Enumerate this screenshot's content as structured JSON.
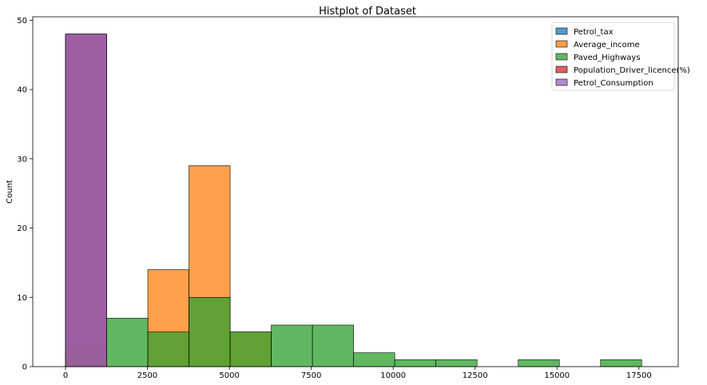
{
  "chart_data": {
    "type": "bar",
    "title": "Histplot of Dataset",
    "xlabel": "",
    "ylabel": "Count",
    "xlim": [
      -1000,
      18700
    ],
    "ylim": [
      0,
      50.5
    ],
    "x_ticks": [
      0,
      2500,
      5000,
      7500,
      10000,
      12500,
      15000,
      17500
    ],
    "x_tick_labels": [
      "0",
      "2500",
      "5000",
      "7500",
      "10000",
      "12500",
      "15000",
      "17500"
    ],
    "y_ticks": [
      0,
      10,
      20,
      30,
      40,
      50
    ],
    "y_tick_labels": [
      "0",
      "10",
      "20",
      "30",
      "40",
      "50"
    ],
    "bin_edges": [
      0,
      1256,
      2512,
      3768,
      5024,
      6280,
      7536,
      8792,
      10048,
      11304,
      12560,
      13816,
      15072,
      16328,
      17584
    ],
    "legend_position": "top-right",
    "series": [
      {
        "name": "Petrol_tax",
        "color": "#1f77b4",
        "values": [
          48,
          0,
          0,
          0,
          0,
          0,
          0,
          0,
          0,
          0,
          0,
          0,
          0,
          0
        ]
      },
      {
        "name": "Average_income",
        "color": "#ff7f0e",
        "values": [
          0,
          0,
          14,
          29,
          5,
          0,
          0,
          0,
          0,
          0,
          0,
          0,
          0,
          0
        ]
      },
      {
        "name": "Paved_Highways",
        "color": "#2ca02c",
        "values": [
          3,
          7,
          5,
          10,
          5,
          6,
          6,
          2,
          1,
          1,
          0,
          1,
          0,
          1
        ]
      },
      {
        "name": "Population_Driver_licence(%)",
        "color": "#d62728",
        "values": [
          48,
          0,
          0,
          0,
          0,
          0,
          0,
          0,
          0,
          0,
          0,
          0,
          0,
          0
        ]
      },
      {
        "name": "Petrol_Consumption",
        "color": "#9467bd",
        "values": [
          48,
          0,
          0,
          0,
          0,
          0,
          0,
          0,
          0,
          0,
          0,
          0,
          0,
          0
        ]
      }
    ],
    "grid": false
  }
}
